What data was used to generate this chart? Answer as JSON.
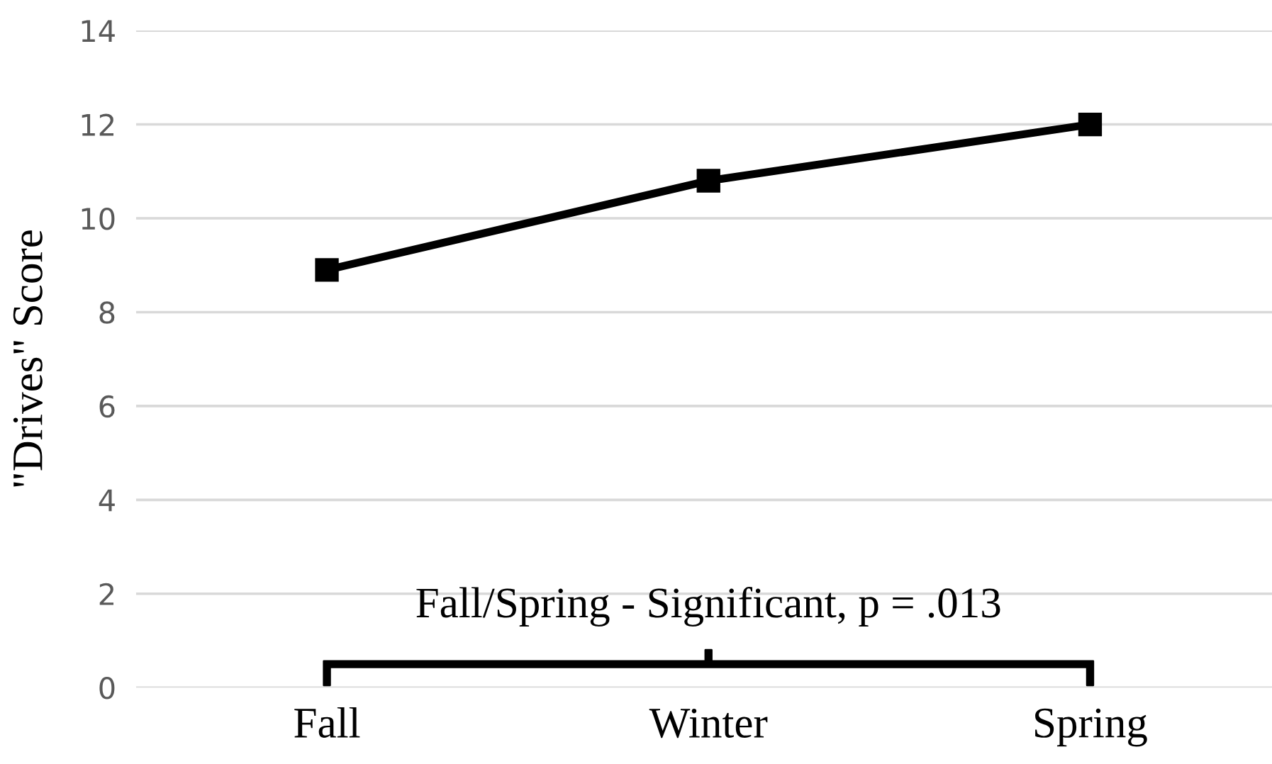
{
  "chart_data": {
    "type": "line",
    "ylabel": "\"Drives\" Score",
    "categories": [
      "Fall",
      "Winter",
      "Spring"
    ],
    "series": [
      {
        "color": "#000000",
        "values": [
          8.9,
          10.8,
          12.0
        ]
      }
    ],
    "ylim": [
      0,
      14
    ],
    "yticks": [
      0,
      2,
      4,
      6,
      8,
      10,
      12,
      14
    ],
    "grid": "y",
    "marker": "square",
    "line_style": "solid",
    "annotations": [
      "Fall/Spring - Significant, p = .013"
    ]
  }
}
